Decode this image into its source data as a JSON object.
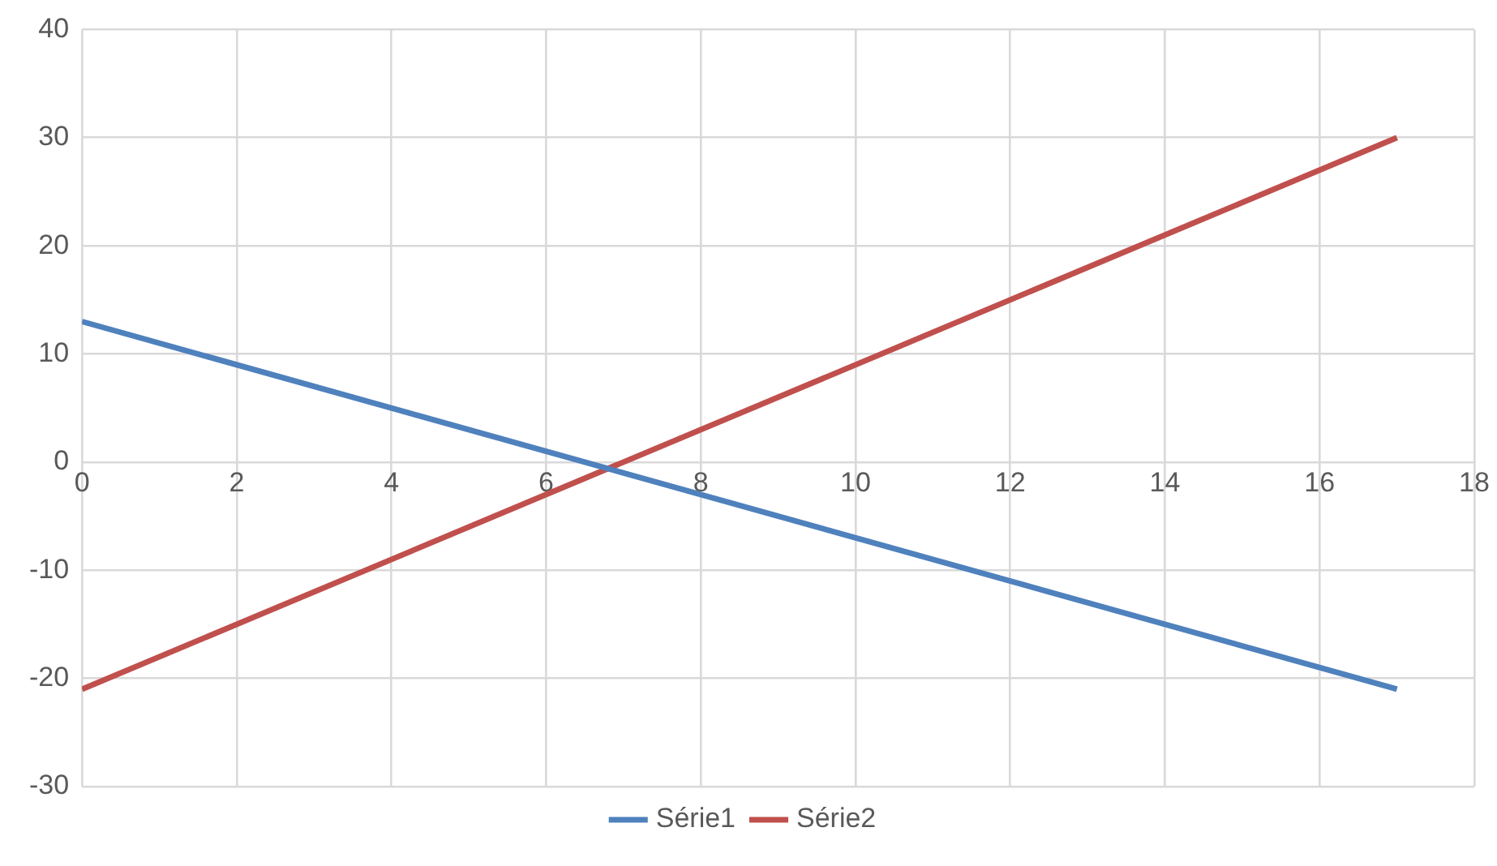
{
  "chart_data": {
    "type": "line",
    "series": [
      {
        "name": "Série1",
        "color": "#4f81bd",
        "values": [
          13,
          -21
        ]
      },
      {
        "name": "Série2",
        "color": "#c0504d",
        "values": [
          -21,
          30
        ]
      }
    ],
    "x": [
      0,
      17
    ],
    "xlim": [
      0,
      18
    ],
    "xticks": [
      0,
      2,
      4,
      6,
      8,
      10,
      12,
      14,
      16,
      18
    ],
    "ylim": [
      -30,
      40
    ],
    "yticks": [
      -30,
      -20,
      -10,
      0,
      10,
      20,
      30,
      40
    ],
    "grid": true,
    "legend": "bottom",
    "marker": "none",
    "line_style": "solid"
  }
}
